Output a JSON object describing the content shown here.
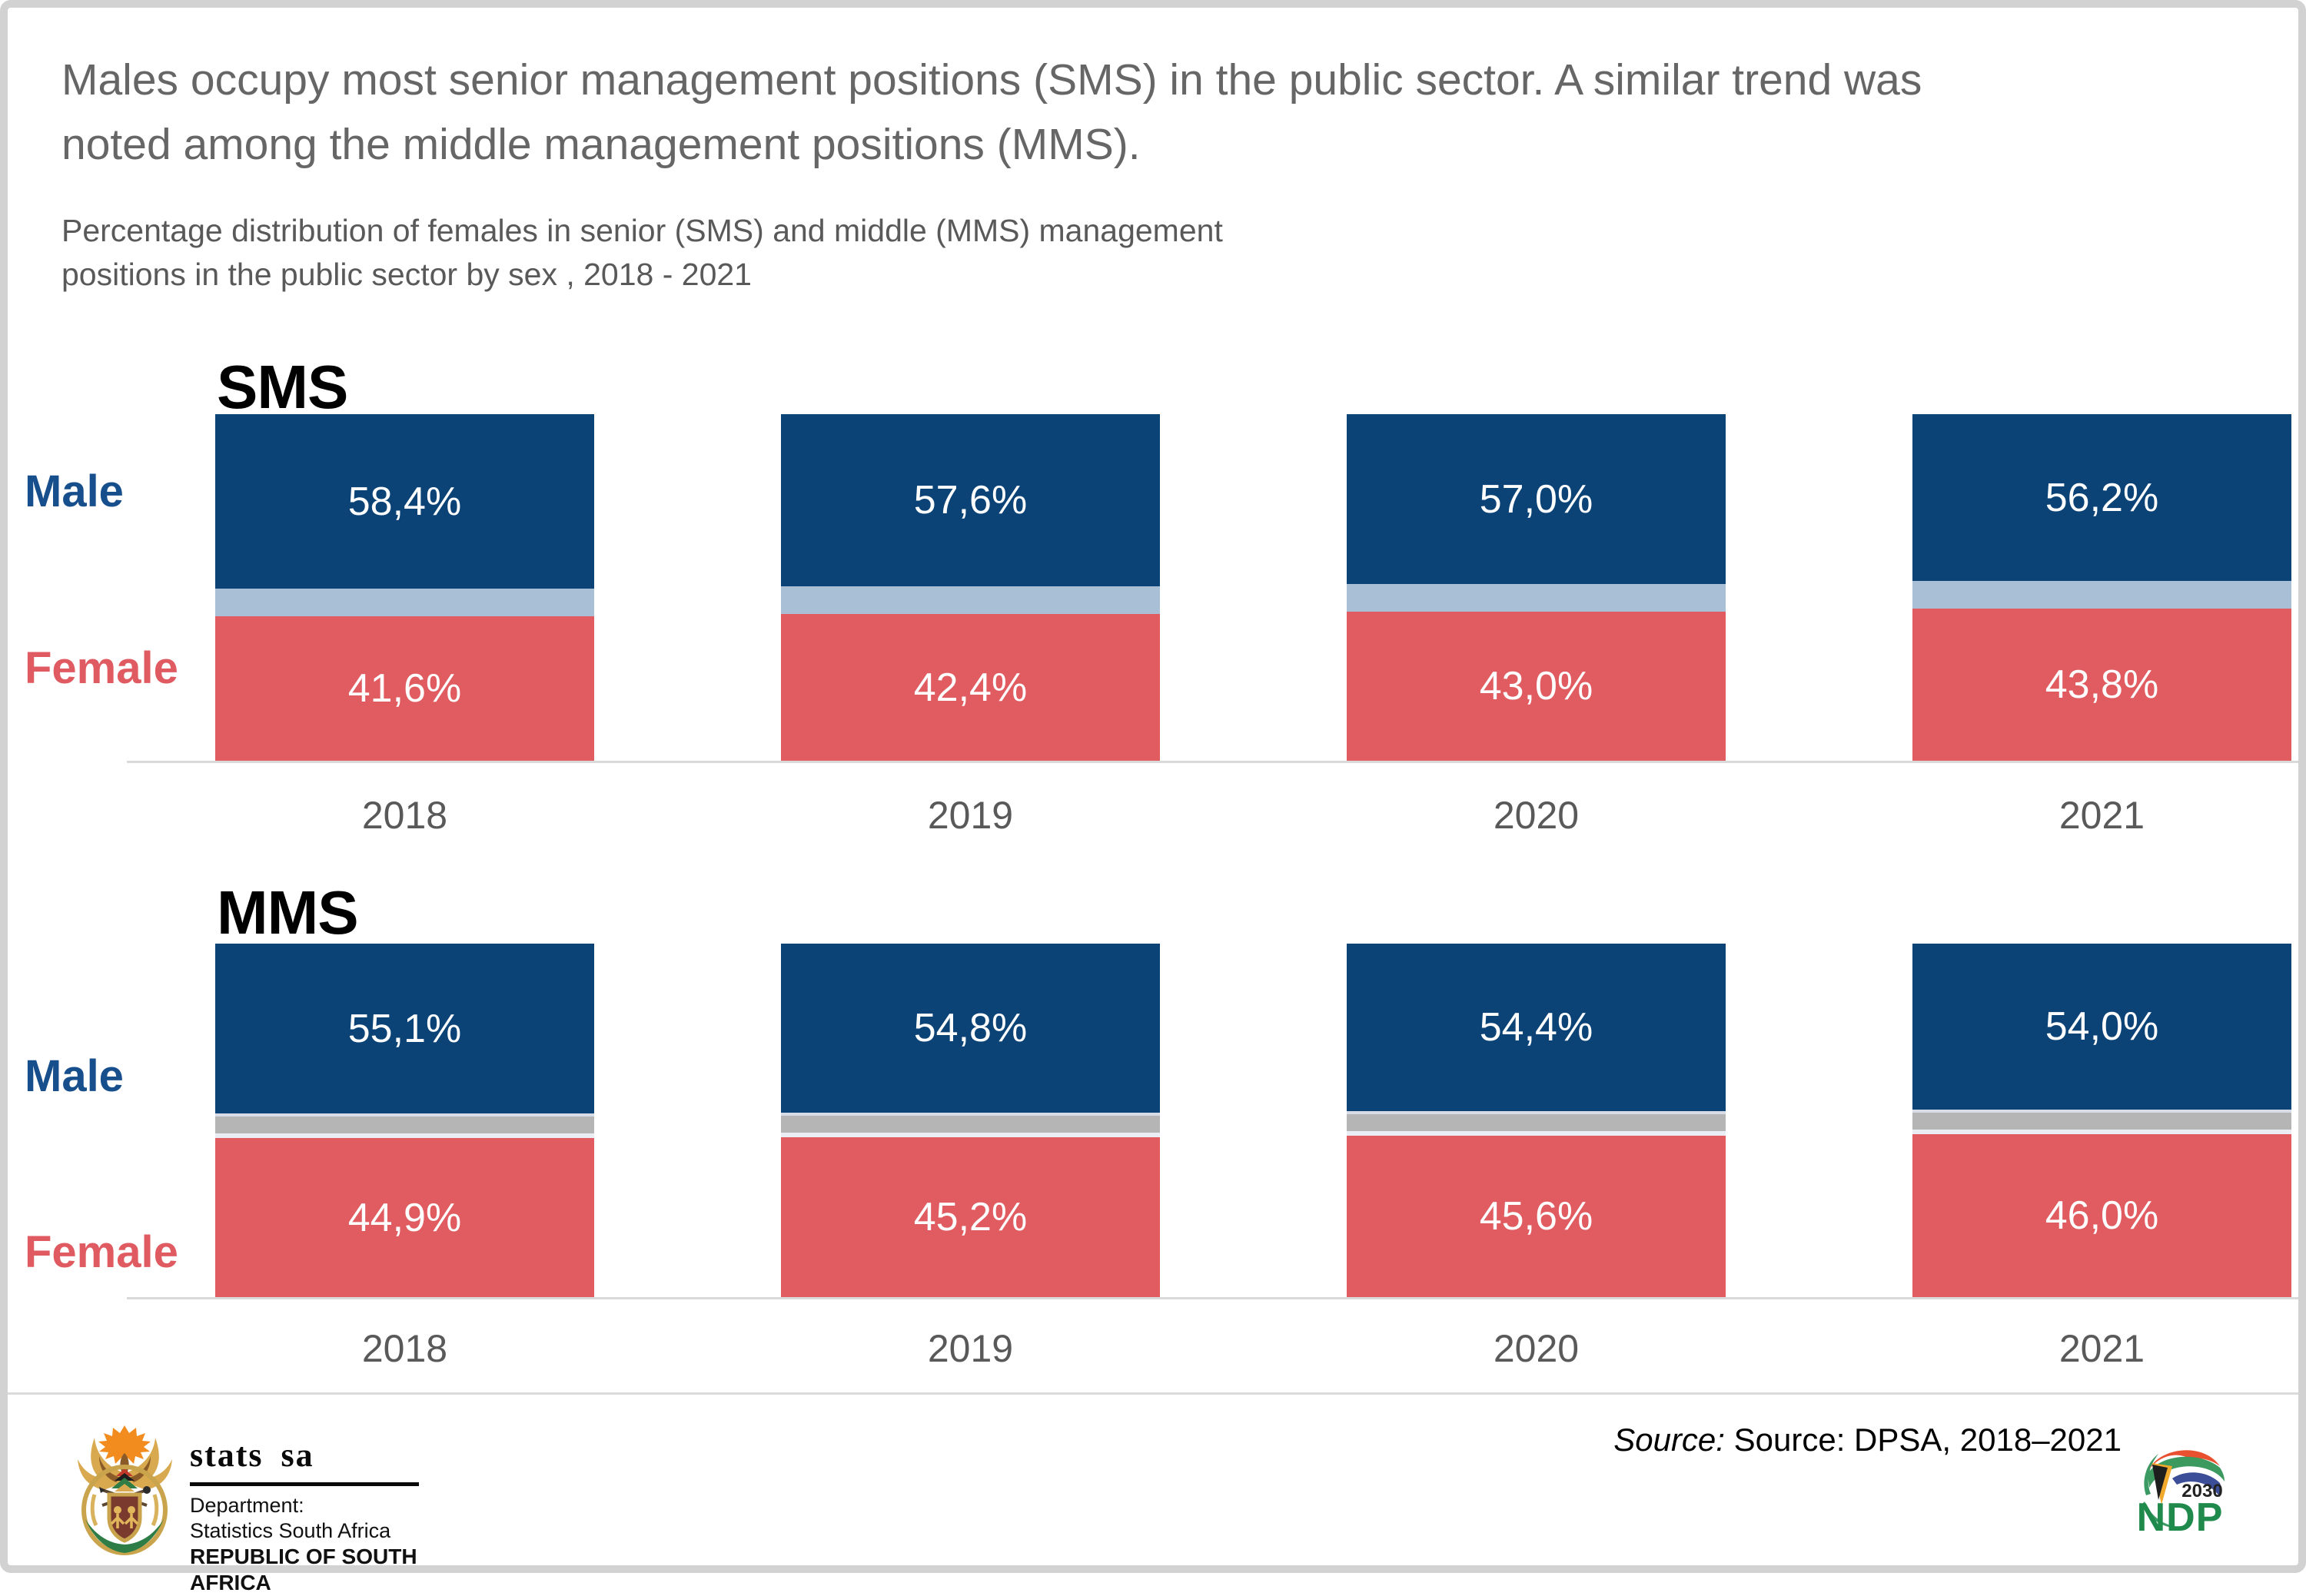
{
  "title_line1": "Males occupy most senior management positions (SMS) in the public sector. A similar trend was",
  "title_line2": "noted among the middle management positions (MMS).",
  "subtitle_line1": "Percentage distribution of females in senior (SMS) and middle (MMS) management",
  "subtitle_line2": "positions in the public sector by sex , 2018 - 2021",
  "chart_data": [
    {
      "type": "bar",
      "id": "sms",
      "heading": "SMS",
      "stacking": "percent_stacked_columns",
      "categories": [
        "2018",
        "2019",
        "2020",
        "2021"
      ],
      "series": [
        {
          "name": "Male",
          "color": "#0B4377",
          "values": [
            58.4,
            57.6,
            57.0,
            56.2
          ],
          "labels": [
            "58,4%",
            "57,6%",
            "57,0%",
            "56,2%"
          ]
        },
        {
          "name": "Female",
          "color": "#E05C60",
          "values": [
            41.6,
            42.4,
            43.0,
            43.8
          ],
          "labels": [
            "41,6%",
            "42,4%",
            "43,0%",
            "43,8%"
          ]
        }
      ],
      "separator": {
        "mid": "#A9BFD6"
      },
      "ylim": [
        0,
        100
      ],
      "grid": false,
      "value_label_color": "#ffffff"
    },
    {
      "type": "bar",
      "id": "mms",
      "heading": "MMS",
      "stacking": "percent_stacked_columns",
      "categories": [
        "2018",
        "2019",
        "2020",
        "2021"
      ],
      "series": [
        {
          "name": "Male",
          "color": "#0B4377",
          "values": [
            55.1,
            54.8,
            54.4,
            54.0
          ],
          "labels": [
            "55,1%",
            "54,8%",
            "54,4%",
            "54,0%"
          ]
        },
        {
          "name": "Female",
          "color": "#E05C60",
          "values": [
            44.9,
            45.2,
            45.6,
            46.0
          ],
          "labels": [
            "44,9%",
            "45,2%",
            "45,6%",
            "46,0%"
          ]
        }
      ],
      "separator": {
        "top_line": "#D8DCE7",
        "mid": "#B5B5B5",
        "bottom_line": "#EAEDF4"
      },
      "ylim": [
        0,
        100
      ],
      "grid": false,
      "value_label_color": "#ffffff"
    }
  ],
  "colors": {
    "male_bar": "#0B4377",
    "female_bar": "#E05C60",
    "male_legend_text": "#174E8C",
    "female_legend_text": "#E05B61",
    "sms_separator_band": "#A9BFD6",
    "mms_separator_band": "#B5B5B5",
    "baseline": "#D9D9D9",
    "frame_border": "#D2D2D2",
    "title_text": "#666666",
    "year_text": "#595959"
  },
  "footer": {
    "statssa": {
      "wordmark": "stats sa",
      "dept_line1": "Department:",
      "dept_line2": "Statistics South Africa",
      "dept_line3": "REPUBLIC OF SOUTH AFRICA"
    },
    "source_label": "Source:",
    "source_text": " Source: DPSA, 2018–2021",
    "ndp": {
      "year": "2030",
      "name": "NDP"
    }
  }
}
